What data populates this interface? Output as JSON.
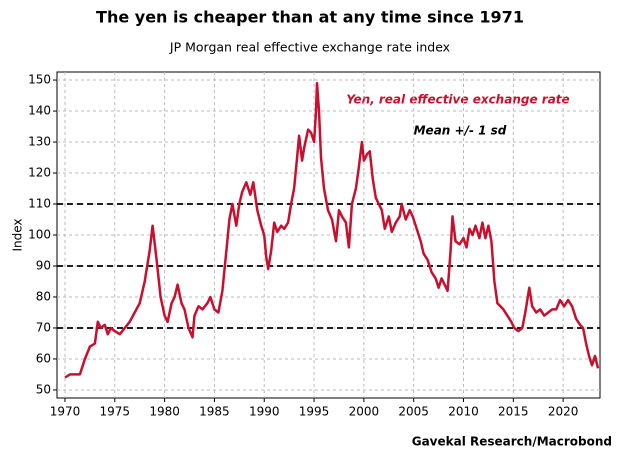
{
  "chart_data": {
    "type": "line",
    "title": "The yen is cheaper than at any time since 1971",
    "subtitle": "JP Morgan real effective exchange rate index",
    "y_label": "Index",
    "source": "Gavekal Research/Macrobond",
    "x": [
      1970.0,
      1970.5,
      1971.0,
      1971.5,
      1972.0,
      1972.5,
      1973.0,
      1973.3,
      1973.6,
      1974.0,
      1974.3,
      1974.6,
      1975.0,
      1975.5,
      1976.0,
      1976.5,
      1977.0,
      1977.5,
      1978.0,
      1978.5,
      1978.8,
      1979.2,
      1979.6,
      1980.0,
      1980.3,
      1980.7,
      1981.0,
      1981.3,
      1981.7,
      1982.0,
      1982.4,
      1982.8,
      1983.0,
      1983.4,
      1983.8,
      1984.3,
      1984.6,
      1985.0,
      1985.4,
      1985.8,
      1986.2,
      1986.5,
      1986.8,
      1987.2,
      1987.5,
      1987.8,
      1988.2,
      1988.6,
      1988.9,
      1989.3,
      1989.7,
      1990.0,
      1990.2,
      1990.4,
      1990.7,
      1991.0,
      1991.3,
      1991.7,
      1992.0,
      1992.4,
      1992.7,
      1993.0,
      1993.3,
      1993.5,
      1993.8,
      1994.0,
      1994.4,
      1994.7,
      1995.0,
      1995.2,
      1995.3,
      1995.5,
      1995.7,
      1996.0,
      1996.4,
      1996.8,
      1997.2,
      1997.5,
      1997.8,
      1998.2,
      1998.5,
      1998.8,
      1999.2,
      1999.5,
      1999.8,
      2000.0,
      2000.3,
      2000.6,
      2000.9,
      2001.2,
      2001.5,
      2001.8,
      2002.1,
      2002.5,
      2002.8,
      2003.2,
      2003.6,
      2003.8,
      2004.2,
      2004.6,
      2004.9,
      2005.3,
      2005.7,
      2006.0,
      2006.4,
      2006.8,
      2007.2,
      2007.5,
      2007.8,
      2008.1,
      2008.4,
      2008.7,
      2008.9,
      2009.2,
      2009.6,
      2010.0,
      2010.3,
      2010.6,
      2010.9,
      2011.2,
      2011.6,
      2011.9,
      2012.2,
      2012.5,
      2012.8,
      2013.1,
      2013.4,
      2013.7,
      2014.0,
      2014.4,
      2014.8,
      2015.1,
      2015.5,
      2015.9,
      2016.2,
      2016.6,
      2016.9,
      2017.3,
      2017.7,
      2018.1,
      2018.5,
      2018.9,
      2019.3,
      2019.7,
      2020.1,
      2020.5,
      2020.9,
      2021.3,
      2021.7,
      2022.0,
      2022.3,
      2022.6,
      2022.9,
      2023.2,
      2023.5
    ],
    "series": [
      {
        "name": "Yen, real effective exchange rate",
        "color": "#c8102e",
        "values": [
          54,
          55,
          55,
          55,
          60,
          64,
          65,
          72,
          70,
          71,
          68,
          70,
          69,
          68,
          70,
          72,
          75,
          78,
          85,
          95,
          103,
          92,
          80,
          74,
          72,
          78,
          80,
          84,
          78,
          76,
          70,
          67,
          74,
          77,
          76,
          78,
          80,
          76,
          75,
          82,
          95,
          105,
          110,
          103,
          110,
          114,
          117,
          113,
          117,
          108,
          103,
          100,
          93,
          89,
          95,
          104,
          101,
          103,
          102,
          104,
          110,
          115,
          125,
          132,
          124,
          128,
          134,
          133,
          130,
          140,
          149,
          140,
          125,
          115,
          108,
          105,
          98,
          108,
          106,
          104,
          96,
          110,
          115,
          122,
          130,
          124,
          126,
          127,
          118,
          112,
          110,
          108,
          102,
          106,
          101,
          104,
          106,
          110,
          105,
          108,
          106,
          102,
          98,
          94,
          92,
          88,
          86,
          83,
          86,
          84,
          82,
          95,
          106,
          98,
          97,
          99,
          96,
          102,
          100,
          103,
          99,
          104,
          99,
          103,
          98,
          85,
          78,
          77,
          76,
          74,
          72,
          70,
          69,
          70,
          75,
          83,
          77,
          75,
          76,
          74,
          75,
          76,
          76,
          79,
          77,
          79,
          77,
          73,
          71,
          70,
          65,
          61,
          58,
          61,
          57
        ]
      }
    ],
    "reference_lines": {
      "label": "Mean +/- 1 sd",
      "values": [
        70,
        90,
        110
      ]
    },
    "xlim": [
      1969.2,
      2023.7
    ],
    "xticks": [
      1970,
      1975,
      1980,
      1985,
      1990,
      1995,
      2000,
      2005,
      2010,
      2015,
      2020
    ],
    "ylim": [
      47.4,
      152.6
    ],
    "yticks": [
      50,
      60,
      70,
      80,
      90,
      100,
      110,
      120,
      130,
      140,
      150
    ],
    "grid": true
  }
}
